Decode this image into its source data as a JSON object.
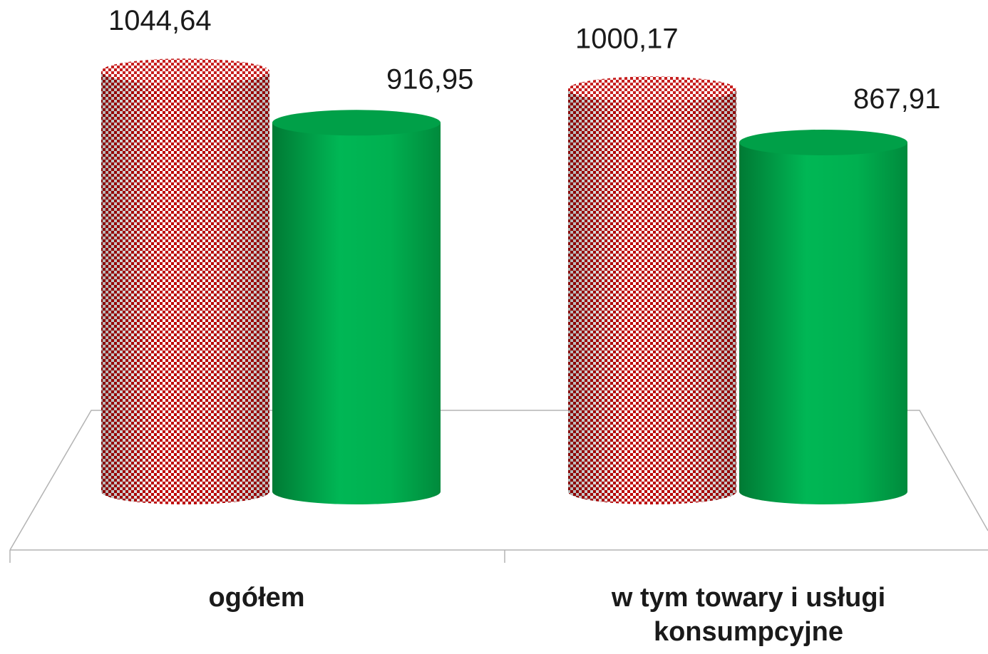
{
  "chart_data": {
    "type": "bar",
    "categories": [
      "ogółem",
      "w tym towary i usługi konsumpcyjne"
    ],
    "category_lines": [
      [
        "ogółem"
      ],
      [
        "w tym towary i usługi",
        "konsumpcyjne"
      ]
    ],
    "series": [
      {
        "values": [
          1044.64,
          1000.17
        ],
        "value_labels": [
          "1044,64",
          "1000,17"
        ],
        "color": "#c00000",
        "pattern": "checker"
      },
      {
        "values": [
          916.95,
          867.91
        ],
        "value_labels": [
          "916,95",
          "867,91"
        ],
        "color": "#00b050",
        "pattern": "solid"
      }
    ],
    "bar_shape": "cylinder",
    "grid": false,
    "legend": "none",
    "ylim": [
      0,
      1044.64
    ]
  }
}
